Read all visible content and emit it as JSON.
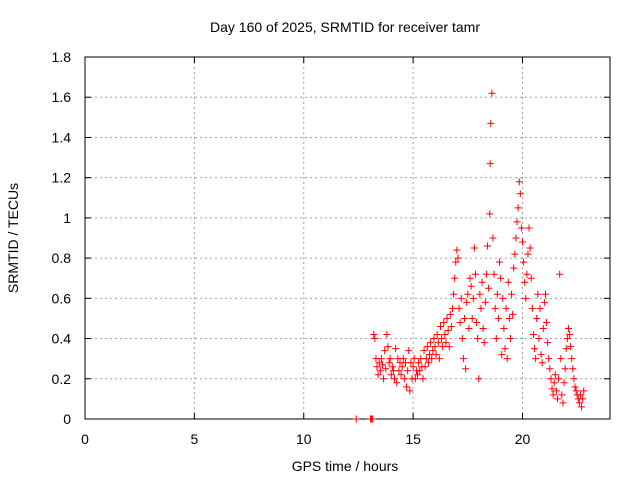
{
  "chart_data": {
    "type": "scatter",
    "title": "Day 160 of 2025, SRMTID for receiver tamr",
    "xlabel": "GPS time / hours",
    "ylabel": "SRMTID / TECUs",
    "xlim": [
      0,
      24
    ],
    "ylim": [
      0,
      1.8
    ],
    "xticks": [
      0,
      5,
      10,
      15,
      20
    ],
    "yticks": [
      0,
      0.2,
      0.4,
      0.6,
      0.8,
      1,
      1.2,
      1.4,
      1.6,
      1.8
    ],
    "xtick_labels": [
      "0",
      "5",
      "10",
      "15",
      "20"
    ],
    "ytick_labels": [
      "0",
      "0.2",
      "0.4",
      "0.6",
      "0.8",
      "1",
      "1.2",
      "1.4",
      "1.6",
      "1.8"
    ],
    "grid": true,
    "marker": "+",
    "color": "#ff0000",
    "series": [
      {
        "name": "SRMTID",
        "points": [
          [
            12.4,
            0.0
          ],
          [
            13.05,
            0.0
          ],
          [
            13.1,
            0.0
          ],
          [
            13.15,
            0.0
          ],
          [
            13.2,
            0.42
          ],
          [
            13.25,
            0.4
          ],
          [
            13.3,
            0.3
          ],
          [
            13.35,
            0.26
          ],
          [
            13.4,
            0.22
          ],
          [
            13.45,
            0.28
          ],
          [
            13.5,
            0.24
          ],
          [
            13.55,
            0.3
          ],
          [
            13.6,
            0.27
          ],
          [
            13.65,
            0.2
          ],
          [
            13.7,
            0.34
          ],
          [
            13.75,
            0.25
          ],
          [
            13.8,
            0.42
          ],
          [
            13.85,
            0.36
          ],
          [
            13.9,
            0.28
          ],
          [
            13.95,
            0.3
          ],
          [
            14.0,
            0.22
          ],
          [
            14.05,
            0.26
          ],
          [
            14.1,
            0.24
          ],
          [
            14.15,
            0.2
          ],
          [
            14.2,
            0.35
          ],
          [
            14.25,
            0.18
          ],
          [
            14.3,
            0.3
          ],
          [
            14.35,
            0.24
          ],
          [
            14.4,
            0.28
          ],
          [
            14.45,
            0.22
          ],
          [
            14.5,
            0.26
          ],
          [
            14.55,
            0.3
          ],
          [
            14.6,
            0.2
          ],
          [
            14.65,
            0.28
          ],
          [
            14.7,
            0.16
          ],
          [
            14.75,
            0.24
          ],
          [
            14.8,
            0.34
          ],
          [
            14.85,
            0.14
          ],
          [
            14.9,
            0.28
          ],
          [
            14.95,
            0.2
          ],
          [
            15.0,
            0.26
          ],
          [
            15.05,
            0.3
          ],
          [
            15.1,
            0.2
          ],
          [
            15.15,
            0.24
          ],
          [
            15.2,
            0.22
          ],
          [
            15.25,
            0.28
          ],
          [
            15.3,
            0.24
          ],
          [
            15.35,
            0.3
          ],
          [
            15.4,
            0.26
          ],
          [
            15.45,
            0.2
          ],
          [
            15.5,
            0.34
          ],
          [
            15.55,
            0.26
          ],
          [
            15.6,
            0.3
          ],
          [
            15.65,
            0.36
          ],
          [
            15.7,
            0.28
          ],
          [
            15.75,
            0.32
          ],
          [
            15.8,
            0.38
          ],
          [
            15.85,
            0.3
          ],
          [
            15.9,
            0.34
          ],
          [
            15.95,
            0.4
          ],
          [
            16.0,
            0.36
          ],
          [
            16.05,
            0.32
          ],
          [
            16.1,
            0.42
          ],
          [
            16.15,
            0.38
          ],
          [
            16.2,
            0.3
          ],
          [
            16.25,
            0.46
          ],
          [
            16.3,
            0.4
          ],
          [
            16.35,
            0.36
          ],
          [
            16.4,
            0.48
          ],
          [
            16.45,
            0.42
          ],
          [
            16.5,
            0.38
          ],
          [
            16.55,
            0.5
          ],
          [
            16.6,
            0.44
          ],
          [
            16.65,
            0.36
          ],
          [
            16.7,
            0.52
          ],
          [
            16.75,
            0.46
          ],
          [
            16.8,
            0.55
          ],
          [
            16.85,
            0.62
          ],
          [
            16.9,
            0.7
          ],
          [
            16.95,
            0.78
          ],
          [
            17.0,
            0.84
          ],
          [
            17.05,
            0.8
          ],
          [
            17.1,
            0.55
          ],
          [
            17.15,
            0.48
          ],
          [
            17.2,
            0.6
          ],
          [
            17.25,
            0.4
          ],
          [
            17.3,
            0.3
          ],
          [
            17.35,
            0.5
          ],
          [
            17.4,
            0.25
          ],
          [
            17.45,
            0.58
          ],
          [
            17.5,
            0.62
          ],
          [
            17.55,
            0.45
          ],
          [
            17.6,
            0.7
          ],
          [
            17.65,
            0.66
          ],
          [
            17.7,
            0.5
          ],
          [
            17.75,
            0.6
          ],
          [
            17.8,
            0.85
          ],
          [
            17.85,
            0.72
          ],
          [
            17.9,
            0.48
          ],
          [
            17.95,
            0.4
          ],
          [
            18.0,
            0.2
          ],
          [
            18.05,
            0.62
          ],
          [
            18.1,
            0.55
          ],
          [
            18.15,
            0.68
          ],
          [
            18.2,
            0.45
          ],
          [
            18.25,
            0.38
          ],
          [
            18.3,
            0.58
          ],
          [
            18.35,
            0.72
          ],
          [
            18.4,
            0.86
          ],
          [
            18.45,
            0.65
          ],
          [
            18.5,
            1.02
          ],
          [
            18.52,
            1.27
          ],
          [
            18.55,
            1.47
          ],
          [
            18.6,
            1.62
          ],
          [
            18.65,
            0.9
          ],
          [
            18.7,
            0.72
          ],
          [
            18.75,
            0.55
          ],
          [
            18.8,
            0.4
          ],
          [
            18.85,
            0.62
          ],
          [
            18.9,
            0.5
          ],
          [
            18.95,
            0.78
          ],
          [
            19.0,
            0.7
          ],
          [
            19.05,
            0.32
          ],
          [
            19.1,
            0.6
          ],
          [
            19.15,
            0.45
          ],
          [
            19.2,
            0.35
          ],
          [
            19.25,
            0.55
          ],
          [
            19.3,
            0.3
          ],
          [
            19.35,
            0.68
          ],
          [
            19.4,
            0.5
          ],
          [
            19.45,
            0.4
          ],
          [
            19.5,
            0.62
          ],
          [
            19.55,
            0.52
          ],
          [
            19.6,
            0.75
          ],
          [
            19.65,
            0.82
          ],
          [
            19.7,
            0.9
          ],
          [
            19.75,
            0.98
          ],
          [
            19.8,
            1.05
          ],
          [
            19.85,
            1.18
          ],
          [
            19.9,
            1.12
          ],
          [
            19.95,
            0.95
          ],
          [
            20.0,
            0.88
          ],
          [
            20.05,
            0.78
          ],
          [
            20.1,
            0.68
          ],
          [
            20.15,
            0.6
          ],
          [
            20.2,
            0.72
          ],
          [
            20.25,
            0.82
          ],
          [
            20.3,
            0.95
          ],
          [
            20.35,
            0.85
          ],
          [
            20.4,
            0.7
          ],
          [
            20.45,
            0.55
          ],
          [
            20.5,
            0.42
          ],
          [
            20.55,
            0.35
          ],
          [
            20.6,
            0.3
          ],
          [
            20.65,
            0.5
          ],
          [
            20.7,
            0.62
          ],
          [
            20.75,
            0.4
          ],
          [
            20.8,
            0.55
          ],
          [
            20.85,
            0.32
          ],
          [
            20.9,
            0.28
          ],
          [
            20.95,
            0.45
          ],
          [
            21.0,
            0.58
          ],
          [
            21.05,
            0.62
          ],
          [
            21.1,
            0.48
          ],
          [
            21.15,
            0.38
          ],
          [
            21.2,
            0.3
          ],
          [
            21.25,
            0.25
          ],
          [
            21.3,
            0.2
          ],
          [
            21.35,
            0.15
          ],
          [
            21.4,
            0.12
          ],
          [
            21.45,
            0.18
          ],
          [
            21.5,
            0.22
          ],
          [
            21.55,
            0.14
          ],
          [
            21.6,
            0.1
          ],
          [
            21.65,
            0.2
          ],
          [
            21.7,
            0.72
          ],
          [
            21.75,
            0.3
          ],
          [
            21.8,
            0.12
          ],
          [
            21.85,
            0.08
          ],
          [
            21.9,
            0.18
          ],
          [
            21.95,
            0.25
          ],
          [
            22.0,
            0.35
          ],
          [
            22.05,
            0.4
          ],
          [
            22.1,
            0.45
          ],
          [
            22.15,
            0.42
          ],
          [
            22.2,
            0.36
          ],
          [
            22.25,
            0.3
          ],
          [
            22.3,
            0.25
          ],
          [
            22.35,
            0.2
          ],
          [
            22.4,
            0.16
          ],
          [
            22.45,
            0.14
          ],
          [
            22.5,
            0.12
          ],
          [
            22.55,
            0.1
          ],
          [
            22.6,
            0.08
          ],
          [
            22.65,
            0.12
          ],
          [
            22.7,
            0.06
          ],
          [
            22.75,
            0.1
          ],
          [
            22.8,
            0.14
          ]
        ]
      }
    ]
  }
}
